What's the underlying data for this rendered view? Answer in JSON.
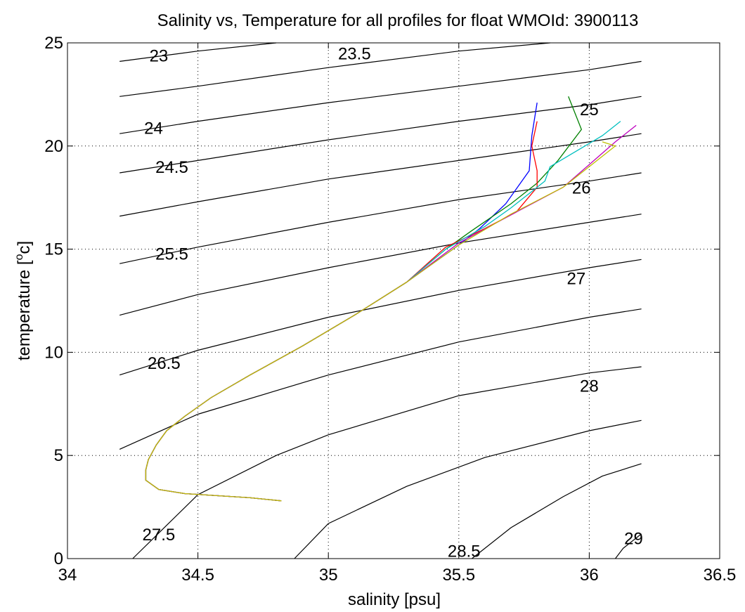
{
  "chart_data": {
    "type": "line",
    "title": "Salinity vs, Temperature for all profiles for float WMOId: 3900113",
    "xlabel": "salinity [psu]",
    "ylabel_parts": [
      "temperature [",
      "o",
      "c]"
    ],
    "xlim": [
      34,
      36.5
    ],
    "ylim": [
      0,
      25
    ],
    "xticks": [
      34,
      34.5,
      35,
      35.5,
      36,
      36.5
    ],
    "xtick_labels": [
      "34",
      "34.5",
      "35",
      "35.5",
      "36",
      "36.5"
    ],
    "yticks": [
      0,
      5,
      10,
      15,
      20,
      25
    ],
    "ytick_labels": [
      "0",
      "5",
      "10",
      "15",
      "20",
      "25"
    ],
    "grid": true,
    "grid_style": "dotted",
    "legend": "none",
    "density_contours": [
      {
        "level": "23",
        "points": [
          [
            34.2,
            24.1
          ],
          [
            34.5,
            24.6
          ],
          [
            34.8,
            25.0
          ]
        ],
        "label_pos": [
          34.35,
          24.4
        ]
      },
      {
        "level": "23.5",
        "points": [
          [
            34.2,
            22.4
          ],
          [
            34.5,
            22.9
          ],
          [
            35.0,
            23.8
          ],
          [
            35.5,
            24.6
          ],
          [
            35.85,
            25.0
          ]
        ],
        "label_pos": [
          35.1,
          24.5
        ]
      },
      {
        "level": "24",
        "points": [
          [
            34.2,
            20.6
          ],
          [
            34.5,
            21.2
          ],
          [
            35.0,
            22.1
          ],
          [
            35.5,
            22.9
          ],
          [
            36.0,
            23.7
          ],
          [
            36.2,
            24.1
          ]
        ],
        "label_pos": [
          34.33,
          20.9
        ]
      },
      {
        "level": "24.5",
        "points": [
          [
            34.2,
            18.7
          ],
          [
            34.5,
            19.3
          ],
          [
            35.0,
            20.3
          ],
          [
            35.5,
            21.2
          ],
          [
            36.0,
            22.0
          ],
          [
            36.2,
            22.4
          ]
        ],
        "label_pos": [
          34.4,
          19.0
        ]
      },
      {
        "level": "25",
        "points": [
          [
            34.2,
            16.6
          ],
          [
            34.5,
            17.3
          ],
          [
            35.0,
            18.4
          ],
          [
            35.5,
            19.3
          ],
          [
            36.0,
            20.2
          ],
          [
            36.2,
            20.6
          ]
        ],
        "label_pos": [
          36.0,
          21.8
        ]
      },
      {
        "level": "25.5",
        "points": [
          [
            34.2,
            14.3
          ],
          [
            34.5,
            15.1
          ],
          [
            35.0,
            16.3
          ],
          [
            35.5,
            17.4
          ],
          [
            36.0,
            18.3
          ],
          [
            36.2,
            18.7
          ]
        ],
        "label_pos": [
          34.4,
          14.8
        ]
      },
      {
        "level": "26",
        "points": [
          [
            34.2,
            11.8
          ],
          [
            34.5,
            12.8
          ],
          [
            35.0,
            14.1
          ],
          [
            35.5,
            15.3
          ],
          [
            36.0,
            16.3
          ],
          [
            36.2,
            16.7
          ]
        ],
        "label_pos": [
          35.97,
          18.0
        ]
      },
      {
        "level": "26.5",
        "points": [
          [
            34.2,
            8.9
          ],
          [
            34.5,
            10.1
          ],
          [
            35.0,
            11.7
          ],
          [
            35.5,
            13.0
          ],
          [
            36.0,
            14.1
          ],
          [
            36.2,
            14.5
          ]
        ],
        "label_pos": [
          34.37,
          9.5
        ]
      },
      {
        "level": "27",
        "points": [
          [
            34.2,
            5.3
          ],
          [
            34.5,
            7.0
          ],
          [
            35.0,
            8.9
          ],
          [
            35.5,
            10.5
          ],
          [
            36.0,
            11.7
          ],
          [
            36.2,
            12.1
          ]
        ],
        "label_pos": [
          35.95,
          13.6
        ]
      },
      {
        "level": "27.5",
        "points": [
          [
            34.25,
            0.0
          ],
          [
            34.5,
            3.1
          ],
          [
            34.8,
            5.0
          ],
          [
            35.0,
            6.0
          ],
          [
            35.5,
            7.9
          ],
          [
            36.0,
            9.0
          ],
          [
            36.2,
            9.3
          ]
        ],
        "label_pos": [
          34.35,
          1.2
        ]
      },
      {
        "level": "28",
        "points": [
          [
            34.87,
            0.0
          ],
          [
            35.0,
            1.7
          ],
          [
            35.3,
            3.5
          ],
          [
            35.6,
            4.9
          ],
          [
            36.0,
            6.2
          ],
          [
            36.2,
            6.7
          ]
        ],
        "label_pos": [
          36.0,
          8.4
        ]
      },
      {
        "level": "28.5",
        "points": [
          [
            35.55,
            0.0
          ],
          [
            35.7,
            1.5
          ],
          [
            35.9,
            3.0
          ],
          [
            36.05,
            4.0
          ],
          [
            36.2,
            4.6
          ]
        ],
        "label_pos": [
          35.52,
          0.4
        ]
      },
      {
        "level": "29",
        "points": [
          [
            36.1,
            0.0
          ],
          [
            36.13,
            0.5
          ],
          [
            36.2,
            1.2
          ]
        ],
        "label_pos": [
          36.17,
          1.0
        ]
      }
    ],
    "series": [
      {
        "color": "#0000ff",
        "points": [
          [
            34.82,
            2.8
          ],
          [
            34.7,
            2.95
          ],
          [
            34.45,
            3.15
          ],
          [
            34.35,
            3.35
          ],
          [
            34.3,
            3.8
          ],
          [
            34.3,
            4.3
          ],
          [
            34.31,
            4.8
          ],
          [
            34.34,
            5.5
          ],
          [
            34.38,
            6.2
          ],
          [
            34.45,
            6.9
          ],
          [
            34.55,
            7.8
          ],
          [
            34.7,
            8.9
          ],
          [
            34.9,
            10.3
          ],
          [
            35.1,
            11.8
          ],
          [
            35.3,
            13.4
          ],
          [
            35.5,
            15.2
          ],
          [
            35.58,
            16.0
          ],
          [
            35.68,
            17.2
          ],
          [
            35.77,
            18.8
          ],
          [
            35.78,
            20.5
          ],
          [
            35.8,
            22.1
          ]
        ]
      },
      {
        "color": "#008000",
        "points": [
          [
            34.82,
            2.8
          ],
          [
            34.7,
            2.95
          ],
          [
            34.45,
            3.15
          ],
          [
            34.35,
            3.35
          ],
          [
            34.3,
            3.8
          ],
          [
            34.3,
            4.3
          ],
          [
            34.31,
            4.8
          ],
          [
            34.34,
            5.5
          ],
          [
            34.38,
            6.2
          ],
          [
            34.45,
            6.9
          ],
          [
            34.55,
            7.8
          ],
          [
            34.7,
            8.9
          ],
          [
            34.9,
            10.3
          ],
          [
            35.1,
            11.8
          ],
          [
            35.3,
            13.4
          ],
          [
            35.45,
            15.0
          ],
          [
            35.55,
            15.9
          ],
          [
            35.7,
            17.2
          ],
          [
            35.8,
            18.2
          ],
          [
            35.88,
            19.3
          ],
          [
            35.97,
            20.8
          ],
          [
            35.92,
            22.4
          ]
        ]
      },
      {
        "color": "#ff0000",
        "points": [
          [
            34.82,
            2.8
          ],
          [
            34.7,
            2.95
          ],
          [
            34.45,
            3.15
          ],
          [
            34.35,
            3.35
          ],
          [
            34.3,
            3.8
          ],
          [
            34.3,
            4.3
          ],
          [
            34.31,
            4.8
          ],
          [
            34.34,
            5.5
          ],
          [
            34.38,
            6.2
          ],
          [
            34.45,
            6.9
          ],
          [
            34.55,
            7.8
          ],
          [
            34.7,
            8.9
          ],
          [
            34.9,
            10.3
          ],
          [
            35.1,
            11.8
          ],
          [
            35.3,
            13.4
          ],
          [
            35.45,
            15.1
          ],
          [
            35.6,
            16.0
          ],
          [
            35.72,
            16.8
          ],
          [
            35.8,
            18.0
          ],
          [
            35.8,
            18.8
          ],
          [
            35.78,
            20.0
          ],
          [
            35.8,
            21.2
          ]
        ]
      },
      {
        "color": "#00bfbf",
        "points": [
          [
            34.82,
            2.8
          ],
          [
            34.7,
            2.95
          ],
          [
            34.45,
            3.15
          ],
          [
            34.35,
            3.35
          ],
          [
            34.3,
            3.8
          ],
          [
            34.3,
            4.3
          ],
          [
            34.31,
            4.8
          ],
          [
            34.34,
            5.5
          ],
          [
            34.38,
            6.2
          ],
          [
            34.45,
            6.9
          ],
          [
            34.55,
            7.8
          ],
          [
            34.7,
            8.9
          ],
          [
            34.9,
            10.3
          ],
          [
            35.1,
            11.8
          ],
          [
            35.3,
            13.4
          ],
          [
            35.45,
            15.0
          ],
          [
            35.6,
            16.1
          ],
          [
            35.7,
            17.0
          ],
          [
            35.83,
            18.3
          ],
          [
            35.85,
            19.0
          ],
          [
            36.05,
            20.5
          ],
          [
            36.12,
            21.2
          ]
        ]
      },
      {
        "color": "#bf00bf",
        "points": [
          [
            34.82,
            2.8
          ],
          [
            34.7,
            2.95
          ],
          [
            34.45,
            3.15
          ],
          [
            34.35,
            3.35
          ],
          [
            34.3,
            3.8
          ],
          [
            34.3,
            4.3
          ],
          [
            34.31,
            4.8
          ],
          [
            34.34,
            5.5
          ],
          [
            34.38,
            6.2
          ],
          [
            34.45,
            6.9
          ],
          [
            34.55,
            7.8
          ],
          [
            34.7,
            8.9
          ],
          [
            34.9,
            10.3
          ],
          [
            35.1,
            11.8
          ],
          [
            35.3,
            13.4
          ],
          [
            35.5,
            15.3
          ],
          [
            35.72,
            16.8
          ],
          [
            35.9,
            18.0
          ],
          [
            36.0,
            19.1
          ],
          [
            36.1,
            20.2
          ],
          [
            36.18,
            21.0
          ]
        ]
      },
      {
        "color": "#bfbf00",
        "points": [
          [
            34.82,
            2.8
          ],
          [
            34.7,
            2.95
          ],
          [
            34.45,
            3.15
          ],
          [
            34.35,
            3.35
          ],
          [
            34.3,
            3.8
          ],
          [
            34.3,
            4.3
          ],
          [
            34.31,
            4.8
          ],
          [
            34.34,
            5.5
          ],
          [
            34.38,
            6.2
          ],
          [
            34.45,
            6.9
          ],
          [
            34.55,
            7.8
          ],
          [
            34.7,
            8.9
          ],
          [
            34.9,
            10.3
          ],
          [
            35.1,
            11.8
          ],
          [
            35.3,
            13.4
          ],
          [
            35.5,
            15.2
          ],
          [
            35.7,
            16.7
          ],
          [
            35.9,
            18.0
          ],
          [
            36.1,
            20.0
          ],
          [
            36.05,
            20.2
          ]
        ]
      }
    ]
  }
}
